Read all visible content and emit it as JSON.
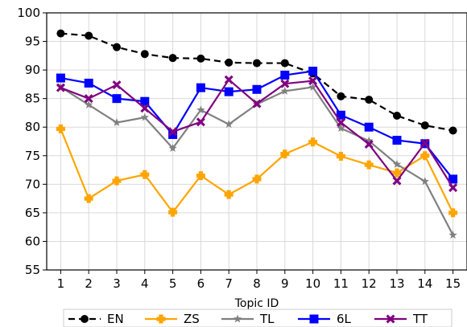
{
  "chart_data": {
    "type": "line",
    "title": "",
    "xlabel": "Topic ID",
    "ylabel": "",
    "x": [
      1,
      2,
      3,
      4,
      5,
      6,
      7,
      8,
      9,
      10,
      11,
      12,
      13,
      14,
      15
    ],
    "xlim": [
      0.5,
      15.5
    ],
    "ylim": [
      55,
      100
    ],
    "yticks": [
      55,
      60,
      65,
      70,
      75,
      80,
      85,
      90,
      95,
      100
    ],
    "grid": true,
    "legend_position": "bottom",
    "series": [
      {
        "name": "EN",
        "color": "#000000",
        "marker": "circle",
        "dashed": true,
        "values": [
          96.4,
          96.0,
          94.0,
          92.8,
          92.1,
          92.0,
          91.3,
          91.2,
          91.2,
          89.4,
          85.4,
          84.8,
          82.0,
          80.3,
          79.4
        ]
      },
      {
        "name": "ZS",
        "color": "#ffa500",
        "marker": "plus",
        "values": [
          79.7,
          67.5,
          70.6,
          71.7,
          65.1,
          71.5,
          68.2,
          70.9,
          75.3,
          77.4,
          74.9,
          73.4,
          72.0,
          75.0,
          65.0
        ]
      },
      {
        "name": "TL",
        "color": "#808080",
        "marker": "star",
        "values": [
          87.0,
          83.9,
          80.8,
          81.7,
          76.3,
          83.0,
          80.5,
          84.0,
          86.3,
          87.0,
          79.8,
          77.6,
          73.5,
          70.5,
          61.1
        ]
      },
      {
        "name": "6L",
        "color": "#0000ff",
        "marker": "square",
        "values": [
          88.6,
          87.7,
          85.0,
          84.5,
          78.7,
          86.9,
          86.2,
          86.6,
          89.1,
          89.8,
          82.1,
          80.0,
          77.7,
          77.1,
          70.9
        ]
      },
      {
        "name": "TT",
        "color": "#800080",
        "marker": "x",
        "values": [
          86.9,
          85.0,
          87.4,
          83.3,
          79.2,
          80.9,
          88.3,
          84.1,
          87.6,
          88.1,
          80.8,
          77.0,
          70.6,
          77.2,
          69.4
        ]
      }
    ]
  }
}
